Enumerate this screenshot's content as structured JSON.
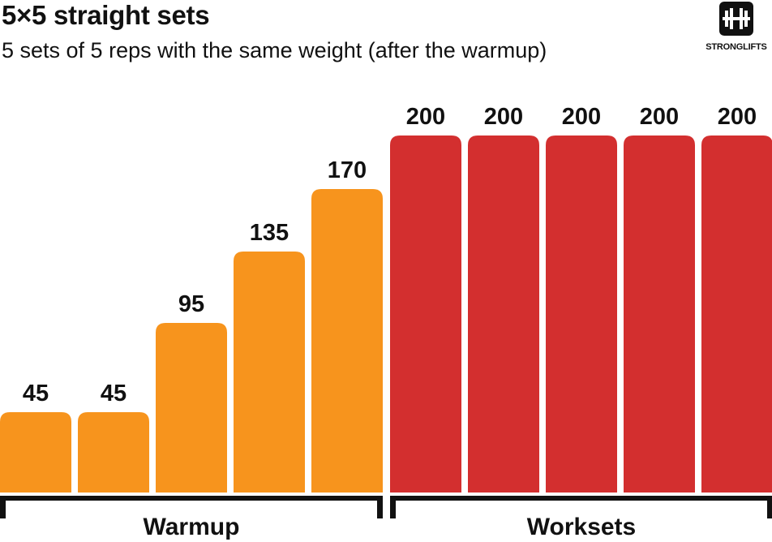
{
  "header": {
    "title": "5×5 straight sets",
    "subtitle": "5 sets of 5 reps with the same weight (after the warmup)"
  },
  "logo": {
    "icon": "barbell-plates-icon",
    "text": "STRONGLIFTS"
  },
  "chart_data": {
    "type": "bar",
    "title": "5×5 straight sets",
    "subtitle": "5 sets of 5 reps with the same weight (after the warmup)",
    "values": [
      45,
      45,
      95,
      135,
      170,
      200,
      200,
      200,
      200,
      200
    ],
    "value_labels": [
      "45",
      "45",
      "95",
      "135",
      "170",
      "200",
      "200",
      "200",
      "200",
      "200"
    ],
    "groups": [
      {
        "label": "Warmup",
        "start": 0,
        "end": 4,
        "color": "#F7941D"
      },
      {
        "label": "Worksets",
        "start": 5,
        "end": 9,
        "color": "#D32F2F"
      }
    ],
    "ylim": [
      0,
      230
    ],
    "grid": false,
    "legend": "none"
  }
}
